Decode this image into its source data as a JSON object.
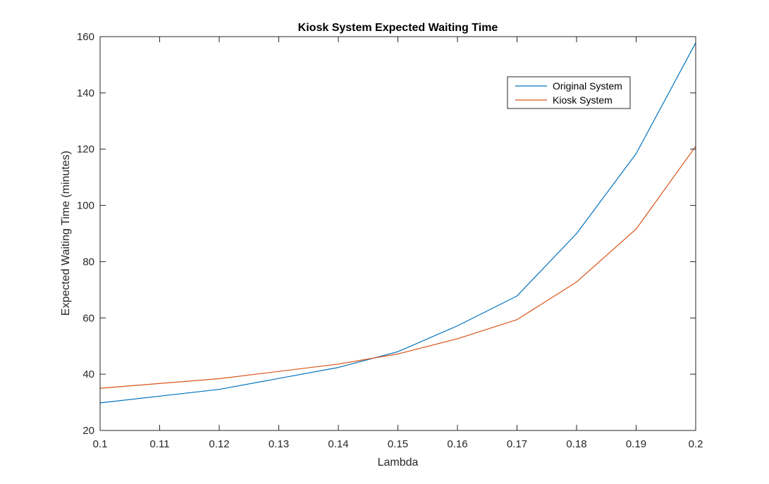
{
  "chart_data": {
    "type": "line",
    "title": "Kiosk System Expected Waiting Time",
    "xlabel": "Lambda",
    "ylabel": "Expected Waiting Time (minutes)",
    "xlim": [
      0.1,
      0.2
    ],
    "ylim": [
      20,
      160
    ],
    "xticks": [
      "0.1",
      "0.11",
      "0.12",
      "0.13",
      "0.14",
      "0.15",
      "0.16",
      "0.17",
      "0.18",
      "0.19",
      "0.2"
    ],
    "yticks": [
      "20",
      "40",
      "60",
      "80",
      "100",
      "120",
      "140",
      "160"
    ],
    "x": [
      0.1,
      0.12,
      0.14,
      0.15,
      0.16,
      0.17,
      0.18,
      0.19,
      0.2
    ],
    "series": [
      {
        "name": "Original System",
        "color": "#0072BD",
        "values": [
          29.8,
          34.6,
          42.4,
          48.0,
          57.2,
          67.8,
          90.0,
          118.4,
          157.8
        ]
      },
      {
        "name": "Kiosk System",
        "color": "#D95319",
        "values": [
          35.0,
          38.4,
          43.6,
          47.2,
          52.6,
          59.4,
          72.8,
          91.6,
          121.0
        ]
      }
    ],
    "grid": false,
    "legend_position": "top-right"
  }
}
